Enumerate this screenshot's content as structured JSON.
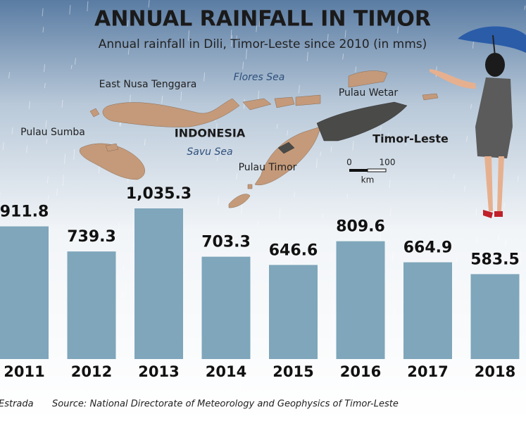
{
  "chart_data": {
    "type": "bar",
    "title": "ANNUAL RAINFALL IN TIMOR",
    "subtitle": "Annual rainfall in Dili, Timor-Leste since 2010 (in mms)",
    "categories": [
      "2011",
      "2012",
      "2013",
      "2014",
      "2015",
      "2016",
      "2017",
      "2018"
    ],
    "values": [
      911.8,
      739.3,
      1035.3,
      703.3,
      646.6,
      809.6,
      664.9,
      583.5
    ],
    "value_labels": [
      "911.8",
      "739.3",
      "1,035.3",
      "703.3",
      "646.6",
      "809.6",
      "664.9",
      "583.5"
    ],
    "color": "#7fa6bb",
    "annotations": [
      "East Nusa Tenggara",
      "Flores Sea",
      "Pulau Wetar",
      "Pulau Sumba",
      "INDONESIA",
      "Timor-Leste",
      "Savu Sea",
      "Pulau Timor"
    ],
    "scale_bar": {
      "start": "0",
      "end": "100",
      "unit": "km"
    },
    "credit": "Estrada",
    "source": "Source: National Directorate of Meteorology and Geophysics of Timor-Leste"
  }
}
